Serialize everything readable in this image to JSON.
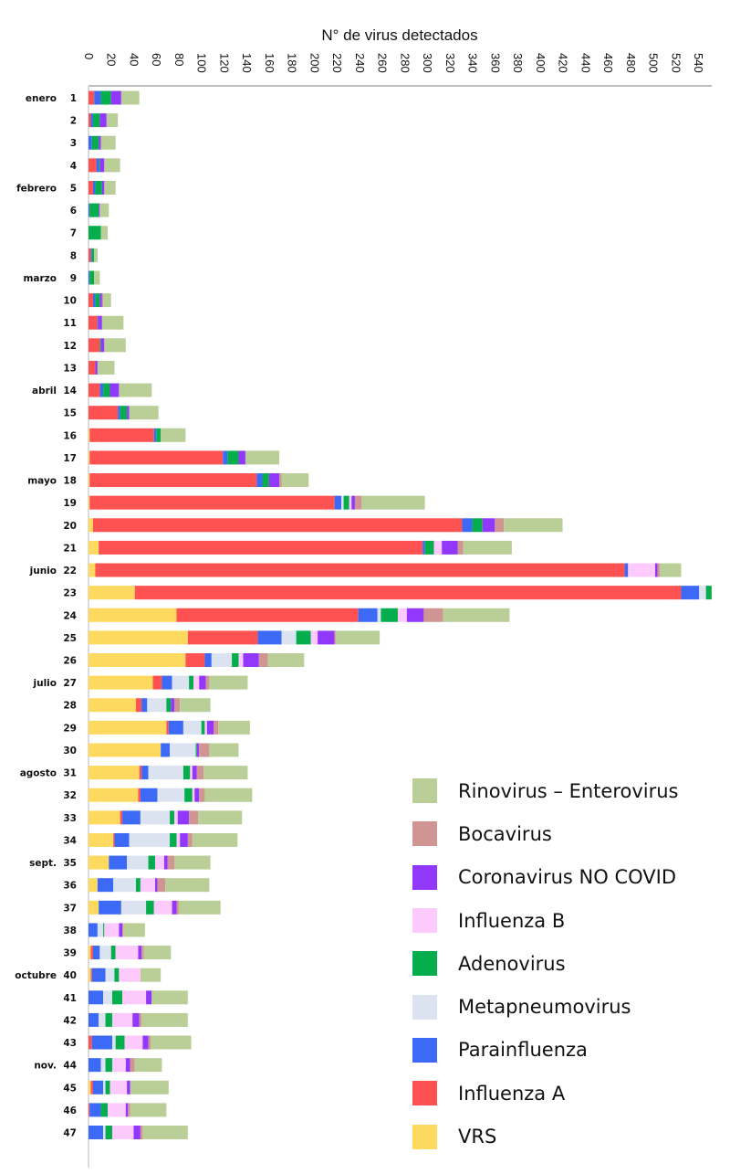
{
  "chart_data": {
    "type": "bar",
    "orientation": "horizontal",
    "stacked": true,
    "title": "",
    "xlabel": "N° de virus detectados",
    "ylabel": "",
    "xlim": [
      0,
      550
    ],
    "x_ticks": [
      0,
      20,
      40,
      60,
      80,
      100,
      120,
      140,
      160,
      180,
      200,
      220,
      240,
      260,
      280,
      300,
      320,
      340,
      360,
      380,
      400,
      420,
      440,
      460,
      480,
      500,
      520,
      540
    ],
    "x_tick_labels": [
      "0",
      "20",
      "40",
      "60",
      "80",
      "100",
      "120",
      "140",
      "160",
      "180",
      "200",
      "220",
      "240",
      "260",
      "280",
      "300",
      "320",
      "340",
      "360",
      "380",
      "400",
      "420",
      "440",
      "460",
      "480",
      "500",
      "520",
      "540"
    ],
    "x_axis_position": "top",
    "grid": false,
    "legend_position": "bottom-right",
    "categories": [
      "1",
      "2",
      "3",
      "4",
      "5",
      "6",
      "7",
      "8",
      "9",
      "10",
      "11",
      "12",
      "13",
      "14",
      "15",
      "16",
      "17",
      "18",
      "19",
      "20",
      "21",
      "22",
      "23",
      "24",
      "25",
      "26",
      "27",
      "28",
      "29",
      "30",
      "31",
      "32",
      "33",
      "34",
      "35",
      "36",
      "37",
      "38",
      "39",
      "40",
      "41",
      "42",
      "43",
      "44",
      "45",
      "46",
      "47"
    ],
    "month_labels": [
      {
        "week": "1",
        "label": "enero"
      },
      {
        "week": "5",
        "label": "febrero"
      },
      {
        "week": "9",
        "label": "marzo"
      },
      {
        "week": "14",
        "label": "abril"
      },
      {
        "week": "18",
        "label": "mayo"
      },
      {
        "week": "22",
        "label": "junio"
      },
      {
        "week": "27",
        "label": "julio"
      },
      {
        "week": "31",
        "label": "agosto"
      },
      {
        "week": "35",
        "label": "sept."
      },
      {
        "week": "40",
        "label": "octubre"
      },
      {
        "week": "44",
        "label": "nov."
      }
    ],
    "series": [
      {
        "name": "VRS",
        "color": "#fdd95f",
        "values": [
          0,
          0,
          0,
          0,
          0,
          0,
          0,
          0,
          0,
          0,
          0,
          0,
          0,
          0,
          0,
          1,
          1,
          1,
          1,
          4,
          9,
          6,
          41,
          78,
          88,
          86,
          57,
          42,
          69,
          64,
          45,
          44,
          28,
          22,
          18,
          8,
          9,
          0,
          2,
          2,
          0,
          0,
          0,
          0,
          2,
          0,
          0
        ]
      },
      {
        "name": "Influenza A",
        "color": "#fe5252",
        "values": [
          5,
          2,
          0,
          7,
          4,
          0,
          0,
          2,
          0,
          4,
          8,
          10,
          6,
          10,
          26,
          57,
          118,
          148,
          217,
          327,
          287,
          469,
          484,
          161,
          62,
          17,
          8,
          5,
          2,
          0,
          2,
          2,
          2,
          1,
          0,
          0,
          0,
          0,
          2,
          1,
          0,
          0,
          3,
          0,
          2,
          1,
          0
        ]
      },
      {
        "name": "Parainfluenza",
        "color": "#3c6af7",
        "values": [
          6,
          2,
          3,
          2,
          2,
          1,
          0,
          1,
          1,
          2,
          1,
          0,
          0,
          3,
          2,
          2,
          4,
          5,
          6,
          9,
          2,
          3,
          16,
          17,
          21,
          6,
          9,
          5,
          13,
          8,
          6,
          15,
          16,
          13,
          16,
          14,
          20,
          8,
          6,
          12,
          13,
          9,
          18,
          11,
          9,
          10,
          13
        ]
      },
      {
        "name": "Metapneumovirus",
        "color": "#dce3f0",
        "values": [
          0,
          0,
          0,
          0,
          0,
          0,
          0,
          0,
          0,
          0,
          0,
          0,
          0,
          0,
          0,
          0,
          0,
          0,
          2,
          0,
          0,
          0,
          6,
          3,
          13,
          18,
          15,
          17,
          16,
          23,
          31,
          24,
          26,
          36,
          19,
          20,
          22,
          5,
          10,
          8,
          8,
          6,
          3,
          4,
          2,
          0,
          2
        ]
      },
      {
        "name": "Adenovirus",
        "color": "#06ad4c",
        "values": [
          9,
          6,
          6,
          1,
          6,
          8,
          11,
          2,
          4,
          4,
          0,
          1,
          0,
          6,
          6,
          4,
          10,
          6,
          5,
          9,
          8,
          0,
          5,
          15,
          13,
          6,
          4,
          4,
          3,
          1,
          6,
          7,
          4,
          6,
          6,
          4,
          7,
          1,
          4,
          4,
          9,
          6,
          8,
          6,
          4,
          6,
          6
        ]
      },
      {
        "name": "Influenza B",
        "color": "#fccafc",
        "values": [
          0,
          0,
          0,
          0,
          0,
          0,
          0,
          0,
          0,
          0,
          0,
          0,
          0,
          0,
          0,
          0,
          0,
          0,
          2,
          0,
          7,
          24,
          0,
          8,
          6,
          4,
          5,
          0,
          2,
          0,
          2,
          2,
          3,
          3,
          8,
          13,
          16,
          13,
          20,
          19,
          21,
          18,
          16,
          12,
          15,
          16,
          19
        ]
      },
      {
        "name": "Coronavirus NO COVID",
        "color": "#9138fc",
        "values": [
          9,
          6,
          2,
          4,
          2,
          1,
          0,
          0,
          0,
          2,
          3,
          3,
          2,
          8,
          2,
          0,
          6,
          9,
          3,
          11,
          14,
          2,
          0,
          15,
          15,
          14,
          6,
          3,
          6,
          2,
          4,
          4,
          10,
          7,
          3,
          2,
          4,
          3,
          3,
          0,
          5,
          6,
          5,
          4,
          3,
          2,
          6
        ]
      },
      {
        "name": "Bocavirus",
        "color": "#d09493",
        "values": [
          0,
          0,
          0,
          0,
          0,
          0,
          0,
          0,
          0,
          1,
          0,
          0,
          0,
          0,
          0,
          0,
          0,
          2,
          6,
          8,
          5,
          2,
          0,
          17,
          1,
          8,
          3,
          5,
          4,
          9,
          6,
          5,
          8,
          4,
          6,
          7,
          2,
          1,
          2,
          0,
          0,
          2,
          2,
          4,
          0,
          2,
          2
        ]
      },
      {
        "name": "Rinovirus – Enterovirus",
        "color": "#b9cf97",
        "values": [
          16,
          10,
          13,
          14,
          10,
          8,
          6,
          3,
          5,
          7,
          19,
          19,
          15,
          29,
          26,
          22,
          30,
          24,
          56,
          52,
          43,
          19,
          0,
          59,
          39,
          32,
          34,
          27,
          28,
          26,
          39,
          42,
          39,
          40,
          32,
          39,
          37,
          19,
          24,
          18,
          32,
          41,
          36,
          24,
          34,
          32,
          40
        ]
      }
    ]
  },
  "legend": {
    "items": [
      {
        "label": "Rinovirus – Enterovirus",
        "color": "#b9cf97"
      },
      {
        "label": "Bocavirus",
        "color": "#d09493"
      },
      {
        "label": "Coronavirus NO COVID",
        "color": "#9138fc"
      },
      {
        "label": "Influenza B",
        "color": "#fccafc"
      },
      {
        "label": "Adenovirus",
        "color": "#06ad4c"
      },
      {
        "label": "Metapneumovirus",
        "color": "#dce3f0"
      },
      {
        "label": "Parainfluenza",
        "color": "#3c6af7"
      },
      {
        "label": "Influenza A",
        "color": "#fe5252"
      },
      {
        "label": "VRS",
        "color": "#fdd95f"
      }
    ]
  }
}
